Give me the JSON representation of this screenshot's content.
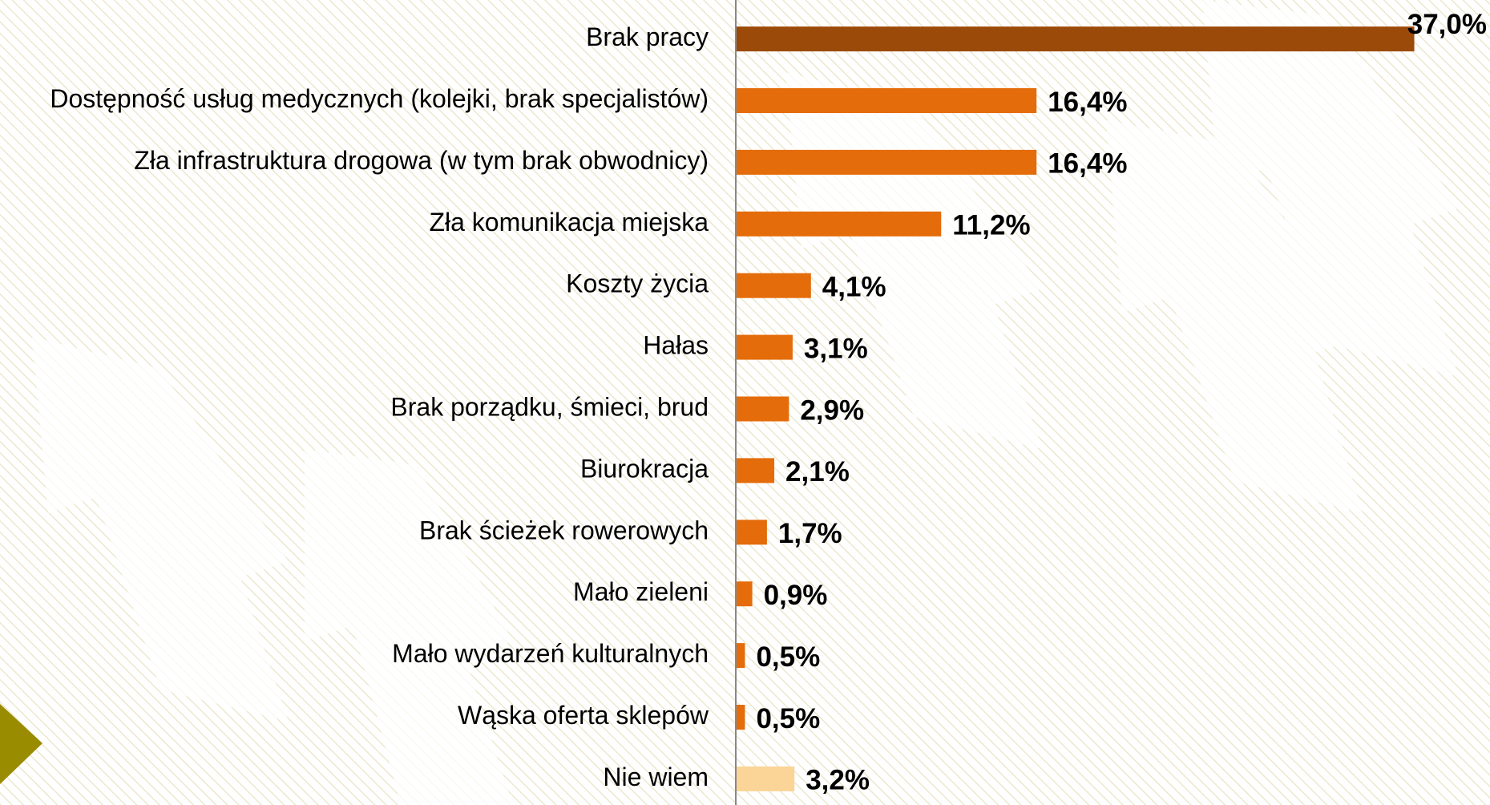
{
  "chart_data": {
    "type": "barh",
    "categories": [
      "Brak pracy",
      "Dostępność usług medycznych (kolejki, brak specjalistów)",
      "Zła infrastruktura drogowa (w tym brak obwodnicy)",
      "Zła komunikacja miejska",
      "Koszty życia",
      "Hałas",
      "Brak porządku, śmieci, brud",
      "Biurokracja",
      "Brak ścieżek rowerowych",
      "Mało zieleni",
      "Mało wydarzeń kulturalnych",
      "Wąska oferta sklepów",
      "Nie wiem"
    ],
    "series": [
      {
        "values": [
          37.0,
          16.4,
          16.4,
          11.2,
          4.1,
          3.1,
          2.9,
          2.1,
          1.7,
          0.9,
          0.5,
          0.5,
          3.2
        ],
        "value_labels": [
          "37,0%",
          "16,4%",
          "16,4%",
          "11,2%",
          "4,1%",
          "3,1%",
          "2,9%",
          "2,1%",
          "1,7%",
          "0,9%",
          "0,5%",
          "0,5%",
          "3,2%"
        ],
        "colors": [
          "#9c4a0a",
          "#e46c0a",
          "#e46c0a",
          "#e46c0a",
          "#e46c0a",
          "#e46c0a",
          "#e46c0a",
          "#e46c0a",
          "#e46c0a",
          "#e46c0a",
          "#e46c0a",
          "#e46c0a",
          "#fad597"
        ]
      }
    ]
  }
}
